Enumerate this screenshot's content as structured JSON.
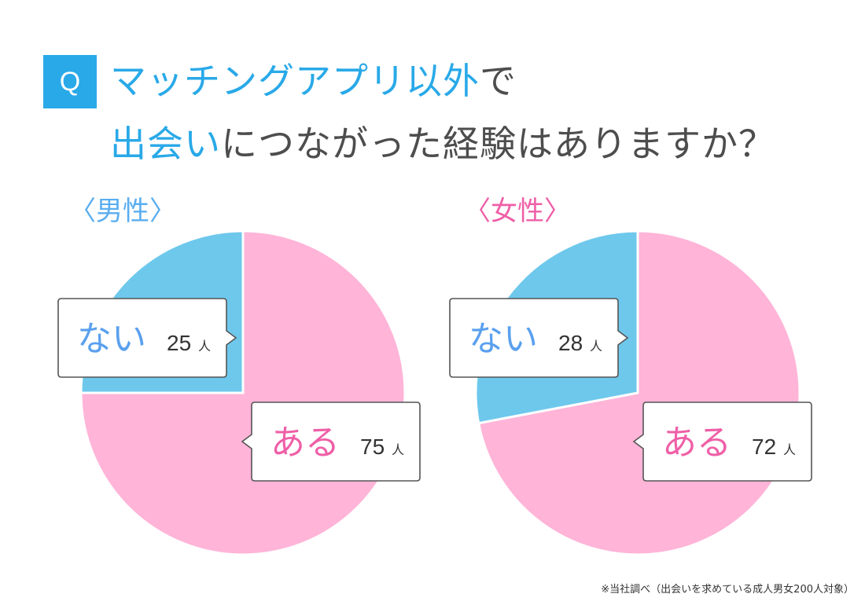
{
  "title": {
    "line1_highlight": "マッチングアプリ以外",
    "line1_rest": "で",
    "line2_highlight": "出会い",
    "line2_rest": "につながった経験はありますか？"
  },
  "badge": "Q",
  "note": "※当社調べ（出会いを求めている成人男女200人対象）",
  "colors": {
    "accent": "#29a9e8",
    "text": "#4d4d4d",
    "male_label": "#5aaef0",
    "female_label": "#ef5fa7",
    "slice_yes": "#ffb4d8",
    "slice_no": "#6ec8ec",
    "yes_text": "#ef5fa7",
    "no_text": "#5aa0ee"
  },
  "chart_data": [
    {
      "type": "pie",
      "title": "〈男性〉",
      "slices": [
        {
          "label": "ある",
          "value": 75,
          "unit": "人"
        },
        {
          "label": "ない",
          "value": 25,
          "unit": "人"
        }
      ]
    },
    {
      "type": "pie",
      "title": "〈女性〉",
      "slices": [
        {
          "label": "ある",
          "value": 72,
          "unit": "人"
        },
        {
          "label": "ない",
          "value": 28,
          "unit": "人"
        }
      ]
    }
  ]
}
